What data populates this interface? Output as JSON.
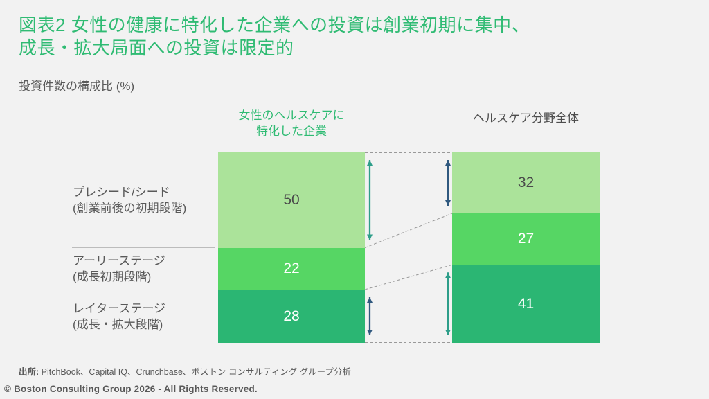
{
  "page": {
    "background_color": "#f2f2f2"
  },
  "title": {
    "line1": "図表2  女性の健康に特化した企業への投資は創業初期に集中、",
    "line2": "成長・拡大局面への投資は限定的",
    "color": "#2FBB73"
  },
  "subtitle": "投資件数の構成比 (%)",
  "chart_data": {
    "type": "bar",
    "subtype": "stacked-100-percent-columns",
    "unit": "%",
    "title": "投資件数の構成比 (%)",
    "categories": [
      "プレシード/シード",
      "アーリーステージ",
      "レイターステージ"
    ],
    "category_sublabels": [
      "(創業前後の初期段階)",
      "(成長初期段階)",
      "(成長・拡大段階)"
    ],
    "series": [
      {
        "name": "女性のヘルスケアに特化した企業",
        "name_lines": [
          "女性のヘルスケアに",
          "特化した企業"
        ],
        "header_color": "#2FBB73",
        "values": [
          50,
          22,
          28
        ]
      },
      {
        "name": "ヘルスケア分野全体",
        "name_lines": [
          "ヘルスケア分野全体"
        ],
        "header_color": "#4D4D4D",
        "values": [
          32,
          27,
          41
        ]
      }
    ],
    "segment_colors": [
      "#ABE39A",
      "#56D664",
      "#2BB673"
    ],
    "value_label_colors": [
      "#4A4A4A",
      "#FFFFFF",
      "#FFFFFF"
    ],
    "arrow_colors": {
      "teal": "#2E9E8A",
      "navy": "#30597F"
    },
    "connector_line_color": "#999999",
    "ylim": [
      0,
      100
    ],
    "legend": "none",
    "grid": "off"
  },
  "source": {
    "label": "出所:",
    "text": " PitchBook、Capital IQ、Crunchbase、ボストン コンサルティング グループ分析"
  },
  "footer": {
    "copyright": "© Boston Consulting Group 2026 - All Rights Reserved."
  }
}
